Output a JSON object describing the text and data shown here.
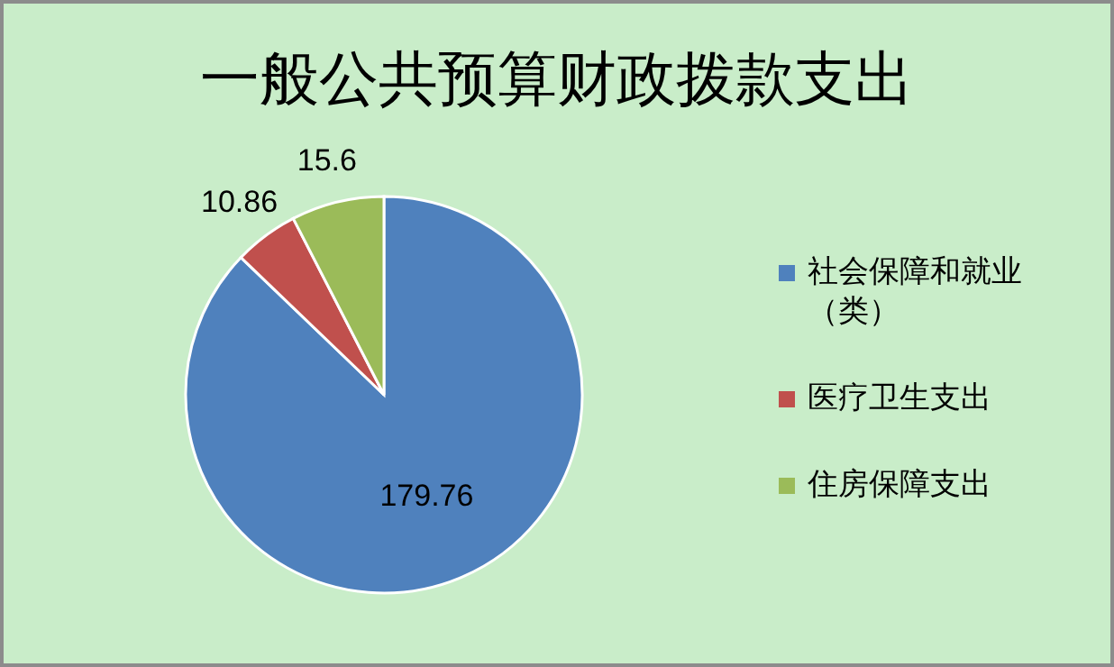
{
  "chart_data": {
    "type": "pie",
    "title": "一般公共预算财政拨款支出",
    "categories": [
      "社会保障和就业（类）",
      "医疗卫生支出",
      "住房保障支出"
    ],
    "values": [
      179.76,
      10.86,
      15.6
    ],
    "colors": [
      "#4f81bd",
      "#c0504d",
      "#9bbb59"
    ],
    "data_labels": true,
    "legend": "right"
  }
}
